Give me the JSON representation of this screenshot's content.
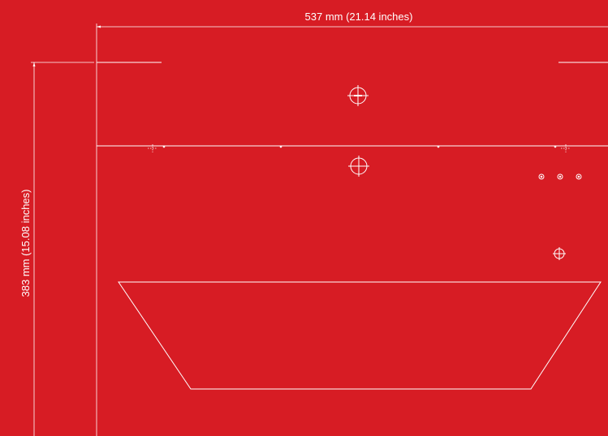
{
  "diagram": {
    "width_dimension": "537 mm (21.14 inches)",
    "height_dimension": "383 mm (15.08 inches)"
  },
  "colors": {
    "background": "#D71C24",
    "line": "#FFFFFF"
  }
}
